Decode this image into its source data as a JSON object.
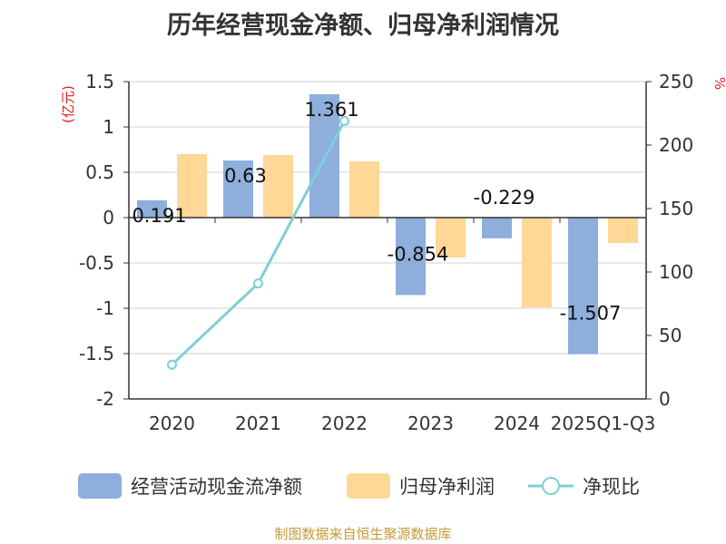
{
  "title": "历年经营现金净额、归母净利润情况",
  "footer": "制图数据来自恒生聚源数据库",
  "chart_data": {
    "type": "bar",
    "categories": [
      "2020",
      "2021",
      "2022",
      "2023",
      "2024",
      "2025Q1-Q3"
    ],
    "series": [
      {
        "name": "经营活动现金流净额",
        "type": "bar",
        "axis": "left",
        "color": "#8eaedb",
        "values": [
          0.191,
          0.63,
          1.361,
          -0.854,
          -0.229,
          -1.507
        ],
        "labels": [
          "0.191",
          "0.63",
          "1.361",
          "-0.854",
          "-0.229",
          "-1.507"
        ]
      },
      {
        "name": "归母净利润",
        "type": "bar",
        "axis": "left",
        "color": "#ffd796",
        "values": [
          0.7,
          0.69,
          0.62,
          -0.44,
          -0.99,
          -0.28
        ]
      },
      {
        "name": "净现比",
        "type": "line",
        "axis": "right",
        "color": "#7ecfd6",
        "values": [
          27,
          91,
          219,
          null,
          null,
          null
        ]
      }
    ],
    "y_left": {
      "unit": "(亿元)",
      "ylim": [
        -2,
        1.5
      ],
      "ticks": [
        1.5,
        1,
        0.5,
        0,
        -0.5,
        -1,
        -1.5,
        -2
      ],
      "tick_labels": [
        "1.5",
        "1",
        "0.5",
        "0",
        "-0.5",
        "-1",
        "-1.5",
        "-2"
      ]
    },
    "y_right": {
      "unit": "%",
      "ylim": [
        0,
        250
      ],
      "ticks": [
        250,
        200,
        150,
        100,
        50,
        0
      ],
      "tick_labels": [
        "250",
        "200",
        "150",
        "100",
        "50",
        "0"
      ]
    },
    "grid": true,
    "legend_position": "bottom"
  }
}
